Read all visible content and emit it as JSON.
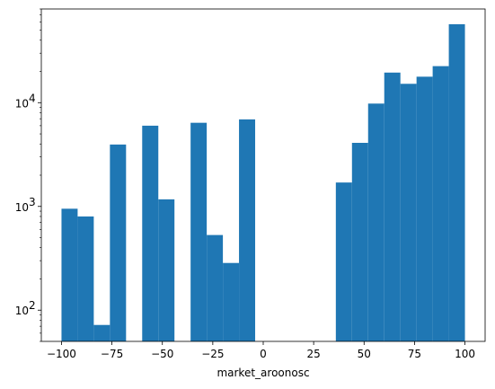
{
  "chart_data": {
    "type": "bar",
    "title": "",
    "xlabel": "market_aroonosc",
    "ylabel": "",
    "yscale": "log",
    "xlim": [
      -110,
      110
    ],
    "ylim": [
      50,
      80000
    ],
    "color": "#1f77b4",
    "grid": false,
    "bin_width": 8,
    "bins": [
      {
        "left": -100,
        "right": -92,
        "count": 950
      },
      {
        "left": -92,
        "right": -84,
        "count": 800
      },
      {
        "left": -84,
        "right": -76,
        "count": 72
      },
      {
        "left": -76,
        "right": -68,
        "count": 3950
      },
      {
        "left": -68,
        "right": -60,
        "count": 0
      },
      {
        "left": -60,
        "right": -52,
        "count": 6000
      },
      {
        "left": -52,
        "right": -44,
        "count": 1170
      },
      {
        "left": -44,
        "right": -36,
        "count": 0
      },
      {
        "left": -36,
        "right": -28,
        "count": 6400
      },
      {
        "left": -28,
        "right": -20,
        "count": 530
      },
      {
        "left": -20,
        "right": -12,
        "count": 285
      },
      {
        "left": -12,
        "right": -4,
        "count": 6900
      },
      {
        "left": -4,
        "right": 4,
        "count": 0
      },
      {
        "left": 4,
        "right": 12,
        "count": 0
      },
      {
        "left": 12,
        "right": 20,
        "count": 0
      },
      {
        "left": 20,
        "right": 28,
        "count": 0
      },
      {
        "left": 28,
        "right": 36,
        "count": 0
      },
      {
        "left": 36,
        "right": 44,
        "count": 1700
      },
      {
        "left": 44,
        "right": 52,
        "count": 4100
      },
      {
        "left": 52,
        "right": 60,
        "count": 9800
      },
      {
        "left": 60,
        "right": 68,
        "count": 19500
      },
      {
        "left": 68,
        "right": 76,
        "count": 15200
      },
      {
        "left": 76,
        "right": 84,
        "count": 17800
      },
      {
        "left": 84,
        "right": 92,
        "count": 22500
      },
      {
        "left": 92,
        "right": 100,
        "count": 57000
      }
    ],
    "x_ticks": [
      {
        "value": -100,
        "label": "−100"
      },
      {
        "value": -75,
        "label": "−75"
      },
      {
        "value": -50,
        "label": "−50"
      },
      {
        "value": -25,
        "label": "−25"
      },
      {
        "value": 0,
        "label": "0"
      },
      {
        "value": 25,
        "label": "25"
      },
      {
        "value": 50,
        "label": "50"
      },
      {
        "value": 75,
        "label": "75"
      },
      {
        "value": 100,
        "label": "100"
      }
    ],
    "y_ticks": [
      {
        "value": 100,
        "base": "10",
        "exp": "2"
      },
      {
        "value": 1000,
        "base": "10",
        "exp": "3"
      },
      {
        "value": 10000,
        "base": "10",
        "exp": "4"
      }
    ]
  }
}
